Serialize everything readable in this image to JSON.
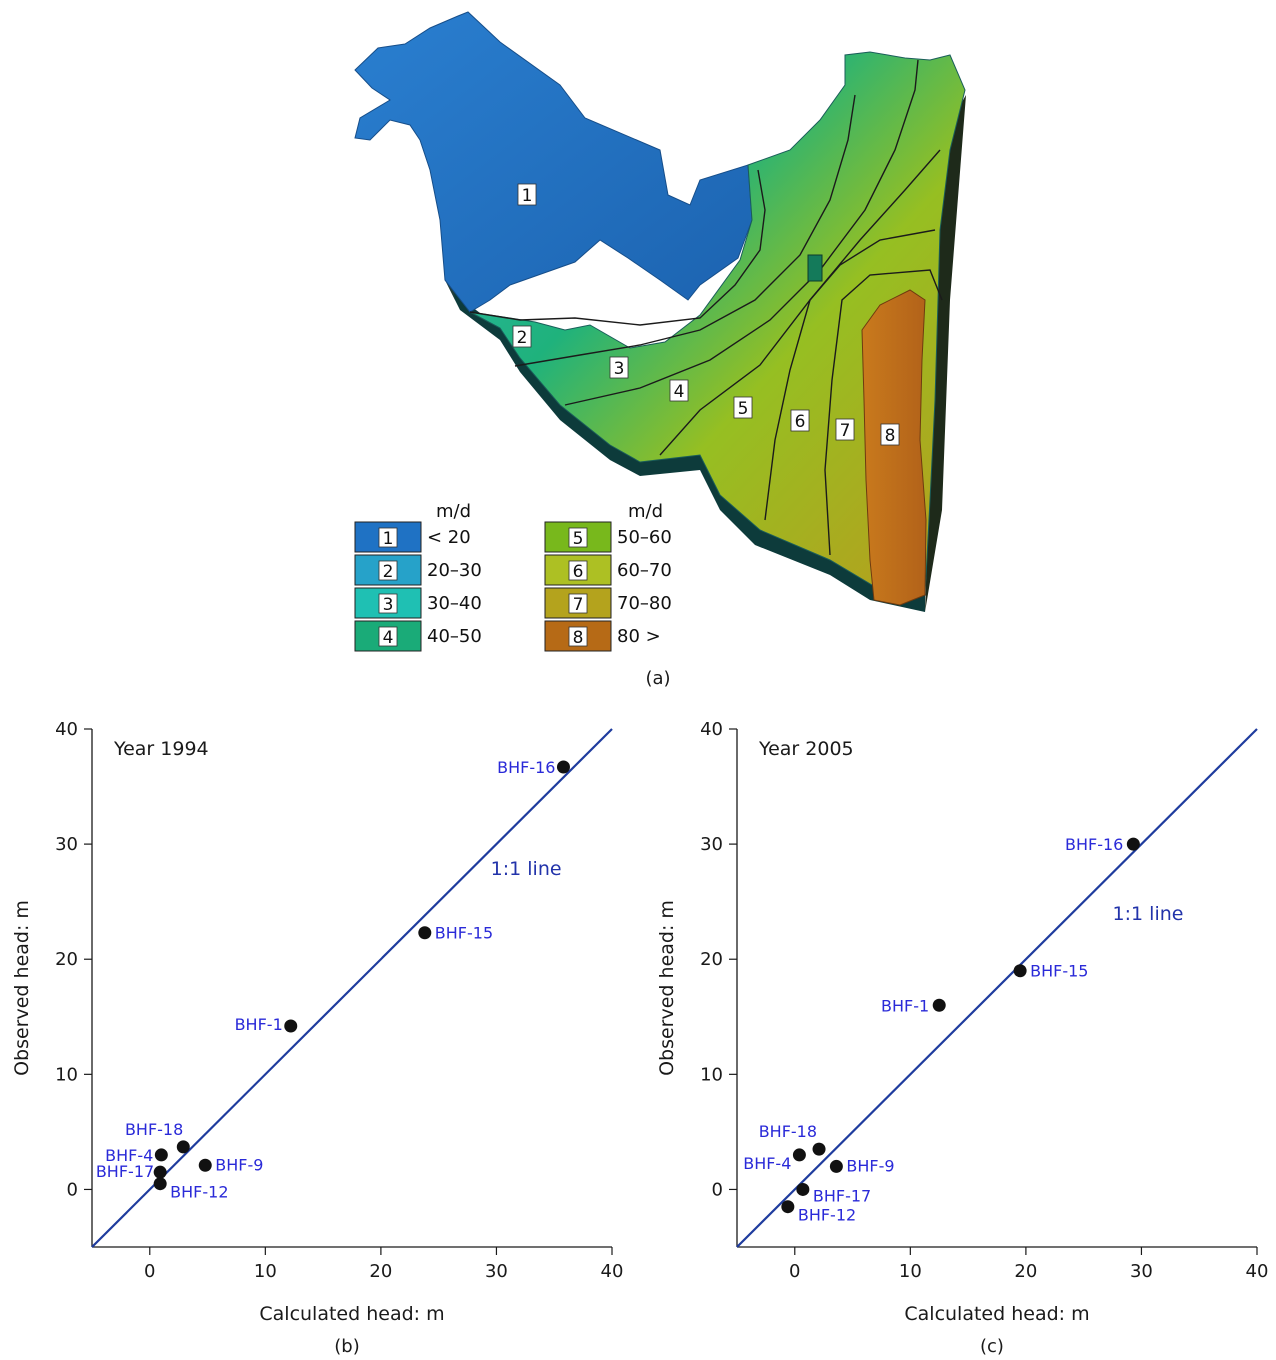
{
  "panel_a": {
    "caption": "(a)",
    "unit_left": "m/d",
    "unit_right": "m/d",
    "zones": [
      {
        "id": "1",
        "range": "< 20",
        "color": "#1f72c4"
      },
      {
        "id": "2",
        "range": "20–30",
        "color": "#26a2c9"
      },
      {
        "id": "3",
        "range": "30–40",
        "color": "#1fc0b3"
      },
      {
        "id": "4",
        "range": "40–50",
        "color": "#1aab78"
      },
      {
        "id": "5",
        "range": "50–60",
        "color": "#78b81c"
      },
      {
        "id": "6",
        "range": "60–70",
        "color": "#adc023"
      },
      {
        "id": "7",
        "range": "70–80",
        "color": "#b4a31d"
      },
      {
        "id": "8",
        "range": "80 >",
        "color": "#b66a16"
      }
    ]
  },
  "chart_data": [
    {
      "type": "scatter",
      "caption": "(b)",
      "annotation": "Year 1994",
      "xlabel": "Calculated head: m",
      "ylabel": "Observed head: m",
      "xlim": [
        -5,
        40
      ],
      "ylim": [
        -5,
        40
      ],
      "xticks": [
        0,
        10,
        20,
        30,
        40
      ],
      "yticks": [
        0,
        10,
        20,
        30,
        40
      ],
      "reference_line": {
        "label": "1:1 line",
        "color": "#1f3c9e"
      },
      "points": [
        {
          "label": "BHF-16",
          "x": 35.8,
          "y": 36.7
        },
        {
          "label": "BHF-15",
          "x": 23.8,
          "y": 22.3
        },
        {
          "label": "BHF-1",
          "x": 12.2,
          "y": 14.2
        },
        {
          "label": "BHF-18",
          "x": 2.9,
          "y": 3.7
        },
        {
          "label": "BHF-4",
          "x": 1.0,
          "y": 3.0
        },
        {
          "label": "BHF-9",
          "x": 4.8,
          "y": 2.1
        },
        {
          "label": "BHF-17",
          "x": 0.9,
          "y": 1.5
        },
        {
          "label": "BHF-12",
          "x": 0.9,
          "y": 0.5
        }
      ]
    },
    {
      "type": "scatter",
      "caption": "(c)",
      "annotation": "Year 2005",
      "xlabel": "Calculated head: m",
      "ylabel": "Observed head: m",
      "xlim": [
        -5,
        40
      ],
      "ylim": [
        -5,
        40
      ],
      "xticks": [
        0,
        10,
        20,
        30,
        40
      ],
      "yticks": [
        0,
        10,
        20,
        30,
        40
      ],
      "reference_line": {
        "label": "1:1 line",
        "color": "#1f3c9e"
      },
      "points": [
        {
          "label": "BHF-16",
          "x": 29.3,
          "y": 30.0
        },
        {
          "label": "BHF-15",
          "x": 19.5,
          "y": 19.0
        },
        {
          "label": "BHF-1",
          "x": 12.5,
          "y": 16.0
        },
        {
          "label": "BHF-18",
          "x": 2.1,
          "y": 3.5
        },
        {
          "label": "BHF-4",
          "x": 0.4,
          "y": 3.0
        },
        {
          "label": "BHF-9",
          "x": 3.6,
          "y": 2.0
        },
        {
          "label": "BHF-17",
          "x": 0.7,
          "y": 0.0
        },
        {
          "label": "BHF-12",
          "x": -0.6,
          "y": -1.5
        }
      ]
    }
  ]
}
